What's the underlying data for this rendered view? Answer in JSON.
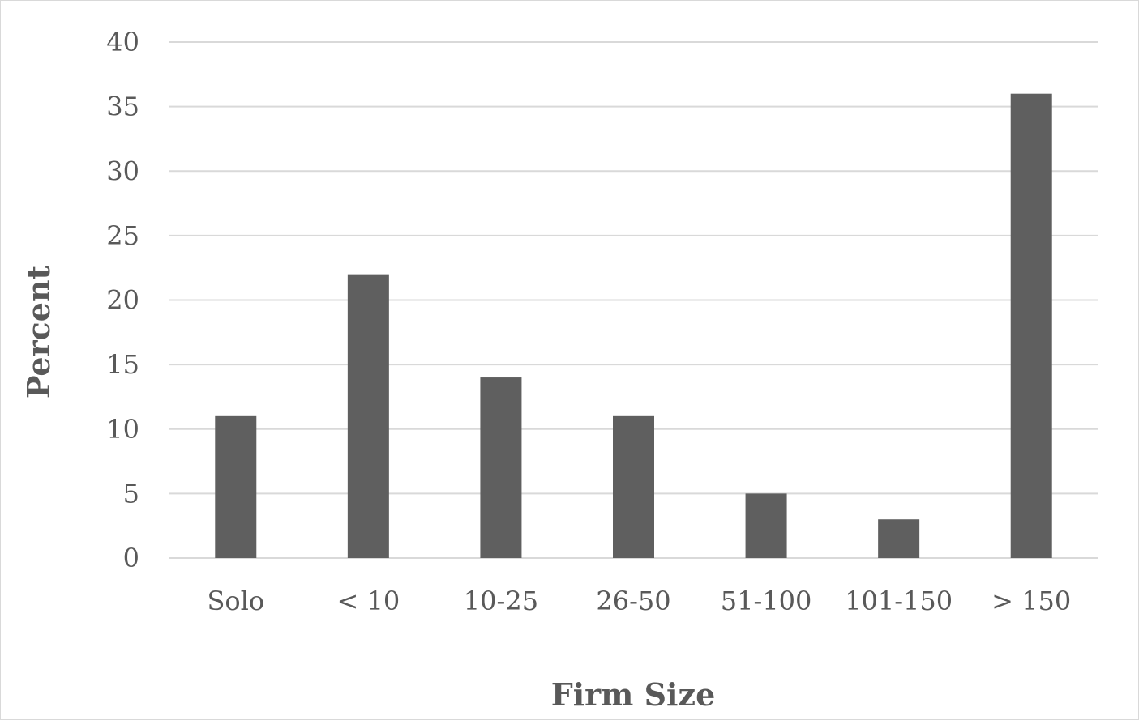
{
  "chart_data": {
    "type": "bar",
    "title": "",
    "xlabel": "Firm Size",
    "ylabel": "Percent",
    "categories": [
      "Solo",
      "< 10",
      "10-25",
      "26-50",
      "51-100",
      "101-150",
      "> 150"
    ],
    "values": [
      11,
      22,
      14,
      11,
      5,
      3,
      36
    ],
    "ylim": [
      0,
      40
    ],
    "yticks": [
      0,
      5,
      10,
      15,
      20,
      25,
      30,
      35,
      40
    ],
    "grid": true,
    "legend": "none",
    "colors": {
      "bar": "#5f5f5f",
      "grid": "#d9d9d9",
      "text": "#595959"
    }
  }
}
